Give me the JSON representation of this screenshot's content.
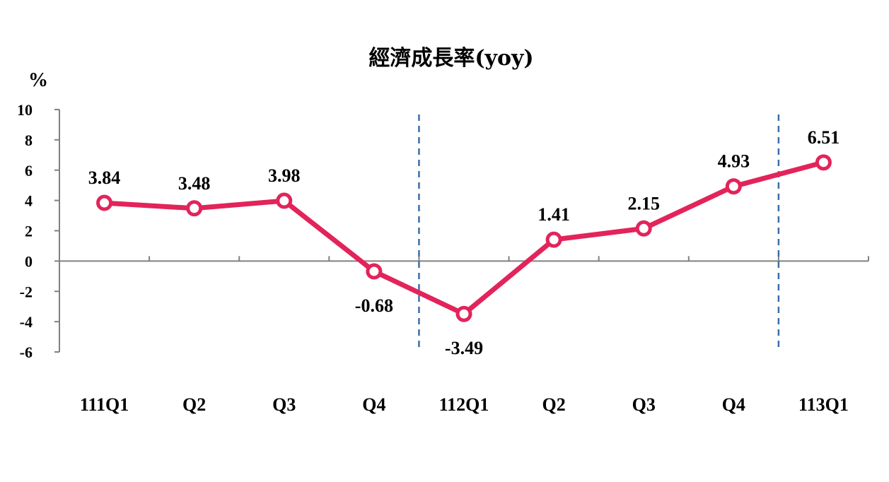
{
  "chart_data": {
    "type": "line",
    "title": "經濟成長率(yoy)",
    "ylabel": "%",
    "xlabel": "",
    "categories": [
      "111Q1",
      "Q2",
      "Q3",
      "Q4",
      "112Q1",
      "Q2",
      "Q3",
      "Q4",
      "113Q1"
    ],
    "series": [
      {
        "values": [
          3.84,
          3.48,
          3.98,
          -0.68,
          -3.49,
          1.41,
          2.15,
          4.93,
          6.51
        ]
      }
    ],
    "data_labels": [
      "3.84",
      "3.48",
      "3.98",
      "-0.68",
      "-3.49",
      "1.41",
      "2.15",
      "4.93",
      "6.51"
    ],
    "ylim": [
      -6,
      10
    ],
    "yticks": [
      10,
      8,
      6,
      4,
      2,
      0,
      -2,
      -4,
      -6
    ],
    "ytick_labels": [
      "10",
      "8",
      "6",
      "4",
      "2",
      "0",
      "-2",
      "-4",
      "-6"
    ],
    "grid": false,
    "legend": "none",
    "year_dividers": [
      "Q4|112Q1",
      "Q4|113Q1"
    ],
    "colors": {
      "series": "#e2245a",
      "divider": "#3a6fa8",
      "axis": "#808080"
    }
  }
}
